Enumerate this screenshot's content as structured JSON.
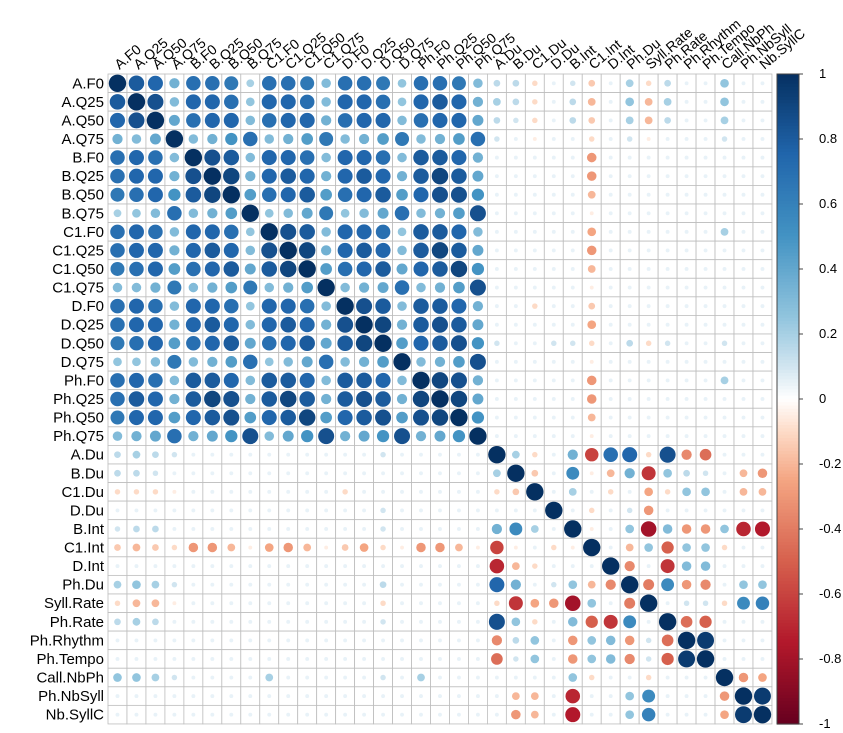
{
  "chart_data": {
    "type": "heatmap",
    "variables": [
      "A.F0",
      "A.Q25",
      "A.Q50",
      "A.Q75",
      "B.F0",
      "B.Q25",
      "B.Q50",
      "B.Q75",
      "C1.F0",
      "C1.Q25",
      "C1.Q50",
      "C1.Q75",
      "D.F0",
      "D.Q25",
      "D.Q50",
      "D.Q75",
      "Ph.F0",
      "Ph.Q25",
      "Ph.Q50",
      "Ph.Q75",
      "A.Du",
      "B.Du",
      "C1.Du",
      "D.Du",
      "B.Int",
      "C1.Int",
      "D.Int",
      "Ph.Du",
      "Syll.Rate",
      "Ph.Rate",
      "Ph.Rhythm",
      "Ph.Tempo",
      "Call.NbPh",
      "Ph.NbSyll",
      "Nb.SyllC"
    ],
    "column_labels": [
      "A.F0",
      "A.Q25",
      "A.Q50",
      "A.Q75",
      "B.F0",
      "B.Q25",
      "B.Q50",
      "B.Q75",
      "C1.F0",
      "C1.Q25",
      "C1.Q50",
      "C1.Q75",
      "D.F0",
      "D.Q25",
      "D.Q50",
      "D.Q75",
      "Ph.F0",
      "Ph.Q25",
      "Ph.Q50",
      "Ph.Q75",
      "A.Du",
      "B.Du",
      "C1.Du",
      "D.Du",
      "B.Int",
      "C1.Int",
      "D.Int",
      "Ph.Du",
      "Syll.Rate",
      "Ph.Rate",
      "Ph.Rhythm",
      "Ph.Tempo",
      "Call.NbPh",
      "Ph.NbSyll",
      "Nb.SyllC"
    ],
    "colorbar": {
      "range": [
        -1,
        1
      ],
      "ticks": [
        "1",
        "0.8",
        "0.6",
        "0.4",
        "0.2",
        "0",
        "-0.2",
        "-0.4",
        "-0.6",
        "-0.8",
        "-1"
      ]
    },
    "matrix": [
      [
        1,
        0.8,
        0.75,
        0.35,
        0.7,
        0.7,
        0.65,
        0.2,
        0.7,
        0.7,
        0.65,
        0.3,
        0.7,
        0.7,
        0.65,
        0.25,
        0.7,
        0.7,
        0.65,
        0.3,
        0.15,
        0.15,
        -0.1,
        0.05,
        0.1,
        -0.15,
        0.05,
        0.2,
        -0.1,
        0.15,
        0.05,
        0.05,
        0.25,
        0.05,
        0.05
      ],
      [
        0.8,
        1,
        0.85,
        0.3,
        0.75,
        0.75,
        0.7,
        0.25,
        0.75,
        0.75,
        0.7,
        0.3,
        0.75,
        0.75,
        0.7,
        0.25,
        0.75,
        0.8,
        0.75,
        0.35,
        0.2,
        0.15,
        -0.1,
        0.05,
        0.15,
        -0.2,
        0.05,
        0.25,
        -0.2,
        0.2,
        0.05,
        0.05,
        0.25,
        0.05,
        0.05
      ],
      [
        0.75,
        0.85,
        1,
        0.4,
        0.7,
        0.75,
        0.75,
        0.3,
        0.7,
        0.75,
        0.75,
        0.35,
        0.7,
        0.75,
        0.75,
        0.3,
        0.7,
        0.75,
        0.75,
        0.4,
        0.15,
        0.1,
        -0.1,
        0.05,
        0.15,
        -0.15,
        0.05,
        0.2,
        -0.2,
        0.15,
        0.05,
        0.05,
        0.2,
        0.05,
        0.05
      ],
      [
        0.35,
        0.3,
        0.4,
        1,
        0.3,
        0.35,
        0.5,
        0.7,
        0.3,
        0.35,
        0.45,
        0.65,
        0.3,
        0.35,
        0.45,
        0.65,
        0.3,
        0.35,
        0.45,
        0.7,
        0.1,
        0.05,
        -0.05,
        0.05,
        0.05,
        -0.1,
        0.05,
        0.1,
        -0.05,
        0.05,
        0.05,
        0.05,
        0.1,
        0.05,
        0.05
      ],
      [
        0.7,
        0.75,
        0.7,
        0.3,
        1,
        0.85,
        0.8,
        0.3,
        0.75,
        0.75,
        0.7,
        0.3,
        0.75,
        0.75,
        0.7,
        0.3,
        0.8,
        0.8,
        0.75,
        0.35,
        0.05,
        0.05,
        0.05,
        0.05,
        0.05,
        -0.3,
        0.05,
        0.05,
        0.05,
        0.05,
        0.05,
        0.05,
        0.05,
        0.05,
        0.05
      ],
      [
        0.7,
        0.75,
        0.75,
        0.35,
        0.85,
        1,
        0.9,
        0.35,
        0.75,
        0.8,
        0.75,
        0.35,
        0.75,
        0.8,
        0.75,
        0.35,
        0.8,
        0.9,
        0.8,
        0.4,
        0.05,
        0.05,
        0.05,
        0.05,
        0.05,
        -0.3,
        0.05,
        0.05,
        0.05,
        0.05,
        0.05,
        0.05,
        0.05,
        0.05,
        0.05
      ],
      [
        0.65,
        0.7,
        0.75,
        0.5,
        0.8,
        0.9,
        1,
        0.45,
        0.7,
        0.75,
        0.8,
        0.45,
        0.7,
        0.75,
        0.8,
        0.45,
        0.75,
        0.85,
        0.85,
        0.5,
        0.05,
        0.05,
        0.05,
        0.05,
        0.05,
        -0.2,
        0.05,
        0.05,
        0.05,
        0.05,
        0.05,
        0.05,
        0.05,
        0.05,
        0.05
      ],
      [
        0.2,
        0.25,
        0.3,
        0.7,
        0.3,
        0.35,
        0.45,
        1,
        0.25,
        0.3,
        0.4,
        0.65,
        0.25,
        0.3,
        0.4,
        0.7,
        0.3,
        0.35,
        0.45,
        0.85,
        0.05,
        0.05,
        0.05,
        0.05,
        0.05,
        -0.05,
        0.05,
        0.05,
        0.05,
        0.05,
        0.05,
        0.05,
        0.05,
        0.05,
        0.05
      ],
      [
        0.7,
        0.75,
        0.7,
        0.3,
        0.75,
        0.75,
        0.7,
        0.25,
        1,
        0.85,
        0.8,
        0.3,
        0.75,
        0.75,
        0.7,
        0.25,
        0.8,
        0.8,
        0.75,
        0.3,
        0.05,
        0.05,
        0.05,
        0.05,
        0.05,
        -0.25,
        0.05,
        0.05,
        0.05,
        0.05,
        0.05,
        0.05,
        0.2,
        0.05,
        0.05
      ],
      [
        0.7,
        0.75,
        0.75,
        0.35,
        0.75,
        0.8,
        0.75,
        0.3,
        0.85,
        1,
        0.9,
        0.35,
        0.75,
        0.8,
        0.75,
        0.3,
        0.8,
        0.9,
        0.8,
        0.4,
        0.05,
        0.05,
        0.05,
        0.05,
        0.05,
        -0.3,
        0.05,
        0.05,
        0.05,
        0.05,
        0.05,
        0.05,
        0.05,
        0.05,
        0.05
      ],
      [
        0.65,
        0.7,
        0.75,
        0.45,
        0.7,
        0.75,
        0.8,
        0.4,
        0.8,
        0.9,
        1,
        0.45,
        0.7,
        0.75,
        0.8,
        0.4,
        0.75,
        0.8,
        0.9,
        0.5,
        0.05,
        0.05,
        0.05,
        0.05,
        0.05,
        -0.2,
        0.05,
        0.05,
        0.05,
        0.05,
        0.05,
        0.05,
        0.05,
        0.05,
        0.05
      ],
      [
        0.3,
        0.3,
        0.35,
        0.65,
        0.3,
        0.35,
        0.45,
        0.65,
        0.3,
        0.35,
        0.45,
        1,
        0.3,
        0.35,
        0.4,
        0.7,
        0.3,
        0.35,
        0.45,
        0.85,
        0.05,
        0.05,
        0.05,
        0.05,
        0.05,
        -0.05,
        0.05,
        0.05,
        0.05,
        0.05,
        0.05,
        0.05,
        0.05,
        0.05,
        0.05
      ],
      [
        0.7,
        0.75,
        0.7,
        0.3,
        0.75,
        0.75,
        0.7,
        0.25,
        0.75,
        0.75,
        0.7,
        0.3,
        1,
        0.85,
        0.8,
        0.3,
        0.8,
        0.8,
        0.75,
        0.35,
        0.05,
        0.05,
        -0.1,
        0.05,
        0.05,
        -0.15,
        0.05,
        0.05,
        0.05,
        0.05,
        0.05,
        0.05,
        0.05,
        0.05,
        0.05
      ],
      [
        0.7,
        0.75,
        0.75,
        0.35,
        0.75,
        0.8,
        0.75,
        0.3,
        0.75,
        0.8,
        0.75,
        0.35,
        0.85,
        1,
        0.9,
        0.35,
        0.8,
        0.85,
        0.8,
        0.4,
        0.05,
        0.05,
        0.05,
        0.05,
        0.05,
        -0.25,
        0.05,
        0.05,
        0.05,
        0.05,
        0.05,
        0.05,
        0.05,
        0.05,
        0.05
      ],
      [
        0.65,
        0.7,
        0.75,
        0.45,
        0.7,
        0.75,
        0.8,
        0.4,
        0.7,
        0.75,
        0.8,
        0.4,
        0.8,
        0.9,
        1,
        0.45,
        0.75,
        0.8,
        0.85,
        0.5,
        0.1,
        0.05,
        0.05,
        0.1,
        0.1,
        -0.1,
        0.05,
        0.15,
        -0.1,
        0.1,
        0.05,
        0.05,
        0.1,
        0.05,
        0.05
      ],
      [
        0.25,
        0.25,
        0.3,
        0.65,
        0.3,
        0.35,
        0.45,
        0.7,
        0.25,
        0.3,
        0.4,
        0.7,
        0.3,
        0.35,
        0.45,
        1,
        0.3,
        0.35,
        0.45,
        0.85,
        0.05,
        0.05,
        0.05,
        0.05,
        0.05,
        -0.05,
        0.05,
        0.05,
        0.05,
        0.05,
        0.05,
        0.05,
        0.05,
        0.05,
        0.05
      ],
      [
        0.7,
        0.75,
        0.7,
        0.3,
        0.8,
        0.8,
        0.75,
        0.3,
        0.8,
        0.8,
        0.75,
        0.3,
        0.8,
        0.8,
        0.75,
        0.3,
        1,
        0.9,
        0.85,
        0.35,
        0.05,
        0.05,
        0.05,
        0.05,
        0.05,
        -0.3,
        0.05,
        0.05,
        0.05,
        0.05,
        0.05,
        0.05,
        0.2,
        0.05,
        0.05
      ],
      [
        0.7,
        0.8,
        0.75,
        0.35,
        0.8,
        0.9,
        0.85,
        0.35,
        0.8,
        0.9,
        0.8,
        0.35,
        0.8,
        0.85,
        0.8,
        0.35,
        0.9,
        1,
        0.9,
        0.4,
        0.05,
        0.05,
        0.05,
        0.05,
        0.05,
        -0.3,
        0.05,
        0.05,
        0.05,
        0.05,
        0.05,
        0.05,
        0.05,
        0.05,
        0.05
      ],
      [
        0.65,
        0.75,
        0.75,
        0.45,
        0.75,
        0.8,
        0.85,
        0.45,
        0.75,
        0.8,
        0.9,
        0.45,
        0.75,
        0.8,
        0.85,
        0.45,
        0.85,
        0.9,
        1,
        0.5,
        0.05,
        0.05,
        0.05,
        0.05,
        0.05,
        -0.2,
        0.05,
        0.05,
        0.05,
        0.05,
        0.05,
        0.05,
        0.05,
        0.05,
        0.05
      ],
      [
        0.3,
        0.35,
        0.4,
        0.7,
        0.35,
        0.4,
        0.5,
        0.85,
        0.3,
        0.4,
        0.5,
        0.85,
        0.35,
        0.4,
        0.5,
        0.85,
        0.35,
        0.4,
        0.5,
        1,
        0.05,
        0.05,
        0.05,
        0.05,
        0.05,
        -0.05,
        0.05,
        0.05,
        0.05,
        0.05,
        0.05,
        0.05,
        0.05,
        0.05,
        0.05
      ],
      [
        0.15,
        0.2,
        0.15,
        0.1,
        0.05,
        0.05,
        0.05,
        0.05,
        0.05,
        0.05,
        0.05,
        0.05,
        0.05,
        0.05,
        0.1,
        0.05,
        0.05,
        0.05,
        0.05,
        0.05,
        1,
        0.2,
        -0.1,
        0.05,
        0.35,
        -0.6,
        0.7,
        0.75,
        -0.1,
        0.85,
        -0.35,
        -0.45,
        0.05,
        0.05,
        0.05
      ],
      [
        0.15,
        0.15,
        0.1,
        0.05,
        0.05,
        0.05,
        0.05,
        0.05,
        0.05,
        0.05,
        0.05,
        0.05,
        0.05,
        0.05,
        0.05,
        0.05,
        0.05,
        0.05,
        0.05,
        0.05,
        0.2,
        1,
        -0.15,
        0.05,
        0.55,
        -0.05,
        -0.2,
        0.35,
        -0.65,
        0.25,
        0.15,
        0.1,
        0.05,
        -0.2,
        -0.3
      ],
      [
        -0.1,
        -0.1,
        -0.1,
        -0.05,
        0.05,
        0.05,
        0.05,
        0.05,
        0.05,
        0.05,
        0.05,
        0.05,
        -0.1,
        0.05,
        0.05,
        0.05,
        0.05,
        0.05,
        0.05,
        0.05,
        -0.1,
        -0.15,
        1,
        0.05,
        0.2,
        0.05,
        -0.1,
        0.05,
        -0.25,
        -0.1,
        0.25,
        0.25,
        0.05,
        -0.2,
        -0.2
      ],
      [
        0.05,
        0.05,
        0.05,
        0.05,
        0.05,
        0.05,
        0.05,
        0.05,
        0.05,
        0.05,
        0.05,
        0.05,
        0.05,
        0.05,
        0.1,
        0.05,
        0.05,
        0.05,
        0.05,
        0.05,
        0.05,
        0.05,
        0.05,
        1,
        0.05,
        -0.1,
        0.05,
        0.1,
        -0.3,
        0.05,
        0.05,
        0.05,
        0.05,
        0.05,
        0.05
      ],
      [
        0.1,
        0.15,
        0.15,
        0.05,
        0.05,
        0.05,
        0.05,
        0.05,
        0.05,
        0.05,
        0.05,
        0.05,
        0.05,
        0.05,
        0.1,
        0.05,
        0.05,
        0.05,
        0.05,
        0.05,
        0.35,
        0.55,
        0.2,
        0.05,
        1,
        -0.05,
        0.05,
        0.25,
        -0.8,
        0.3,
        -0.3,
        -0.3,
        0.25,
        -0.7,
        -0.75
      ],
      [
        -0.15,
        -0.2,
        -0.15,
        -0.1,
        -0.3,
        -0.3,
        -0.2,
        -0.05,
        -0.25,
        -0.3,
        -0.2,
        -0.05,
        -0.15,
        -0.25,
        -0.1,
        -0.05,
        -0.3,
        -0.3,
        -0.2,
        -0.05,
        -0.6,
        -0.05,
        0.05,
        -0.1,
        -0.05,
        1,
        0.05,
        -0.2,
        0.25,
        -0.5,
        0.25,
        0.25,
        -0.1,
        0.05,
        0.05
      ],
      [
        0.05,
        0.05,
        0.05,
        0.05,
        0.05,
        0.05,
        0.05,
        0.05,
        0.05,
        0.05,
        0.05,
        0.05,
        0.05,
        0.05,
        0.05,
        0.05,
        0.05,
        0.05,
        0.05,
        0.05,
        -0.7,
        -0.2,
        -0.1,
        0.05,
        0.05,
        0.05,
        1,
        -0.35,
        0.05,
        -0.65,
        0.3,
        0.3,
        0.05,
        0.05,
        0.05
      ],
      [
        0.2,
        0.25,
        0.2,
        0.1,
        0.05,
        0.05,
        0.05,
        0.05,
        0.05,
        0.05,
        0.05,
        0.05,
        0.05,
        0.05,
        0.15,
        0.05,
        0.05,
        0.05,
        0.05,
        0.05,
        0.75,
        0.35,
        0.05,
        0.1,
        0.25,
        -0.2,
        -0.35,
        1,
        -0.4,
        0.55,
        -0.3,
        -0.35,
        0.05,
        0.25,
        0.25
      ],
      [
        -0.1,
        -0.2,
        -0.2,
        -0.05,
        0.05,
        0.05,
        0.05,
        0.05,
        0.05,
        0.05,
        0.05,
        0.05,
        0.05,
        0.05,
        -0.1,
        0.05,
        0.05,
        0.05,
        0.05,
        0.05,
        -0.1,
        -0.65,
        -0.25,
        -0.3,
        -0.8,
        0.25,
        0.05,
        -0.4,
        1,
        0.05,
        0.1,
        0.1,
        -0.1,
        0.55,
        0.6
      ],
      [
        0.15,
        0.2,
        0.15,
        0.05,
        0.05,
        0.05,
        0.05,
        0.05,
        0.05,
        0.05,
        0.05,
        0.05,
        0.05,
        0.05,
        0.1,
        0.05,
        0.05,
        0.05,
        0.05,
        0.05,
        0.85,
        0.25,
        -0.1,
        0.05,
        0.3,
        -0.5,
        -0.65,
        0.55,
        0.05,
        1,
        -0.45,
        -0.5,
        0.05,
        0.05,
        0.05
      ],
      [
        0.05,
        0.05,
        0.05,
        0.05,
        0.05,
        0.05,
        0.05,
        0.05,
        0.05,
        0.05,
        0.05,
        0.05,
        0.05,
        0.05,
        0.05,
        0.05,
        0.05,
        0.05,
        0.05,
        0.05,
        -0.35,
        0.15,
        0.25,
        0.05,
        -0.3,
        0.25,
        0.3,
        -0.3,
        0.1,
        -0.45,
        1,
        0.95,
        0.05,
        0.05,
        0.05
      ],
      [
        0.05,
        0.05,
        0.05,
        0.05,
        0.05,
        0.05,
        0.05,
        0.05,
        0.05,
        0.05,
        0.05,
        0.05,
        0.05,
        0.05,
        0.05,
        0.05,
        0.05,
        0.05,
        0.05,
        0.05,
        -0.45,
        0.1,
        0.25,
        0.05,
        -0.3,
        0.25,
        0.3,
        -0.35,
        0.1,
        -0.5,
        0.95,
        1,
        0.05,
        0.05,
        0.05
      ],
      [
        0.25,
        0.25,
        0.2,
        0.1,
        0.05,
        0.05,
        0.05,
        0.05,
        0.2,
        0.05,
        0.05,
        0.05,
        0.05,
        0.05,
        0.1,
        0.05,
        0.2,
        0.05,
        0.05,
        0.05,
        0.05,
        0.05,
        0.05,
        0.05,
        0.25,
        -0.1,
        0.05,
        0.05,
        -0.1,
        0.05,
        0.05,
        0.05,
        1,
        -0.3,
        -0.25
      ],
      [
        0.05,
        0.05,
        0.05,
        0.05,
        0.05,
        0.05,
        0.05,
        0.05,
        0.05,
        0.05,
        0.05,
        0.05,
        0.05,
        0.05,
        0.05,
        0.05,
        0.05,
        0.05,
        0.05,
        0.05,
        0.05,
        -0.2,
        -0.2,
        0.05,
        -0.7,
        0.05,
        0.05,
        0.25,
        0.55,
        0.05,
        0.05,
        0.05,
        -0.3,
        1,
        0.95
      ],
      [
        0.05,
        0.05,
        0.05,
        0.05,
        0.05,
        0.05,
        0.05,
        0.05,
        0.05,
        0.05,
        0.05,
        0.05,
        0.05,
        0.05,
        0.05,
        0.05,
        0.05,
        0.05,
        0.05,
        0.05,
        0.05,
        -0.3,
        -0.2,
        0.05,
        -0.75,
        0.05,
        0.05,
        0.25,
        0.6,
        0.05,
        0.05,
        0.05,
        -0.25,
        0.95,
        1
      ]
    ]
  }
}
